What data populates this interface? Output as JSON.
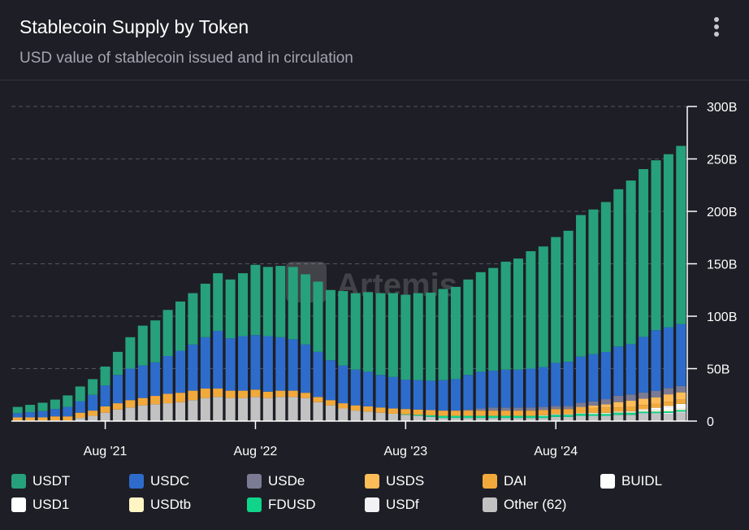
{
  "header": {
    "title": "Stablecoin Supply by Token",
    "subtitle": "USD value of stablecoin issued and in circulation",
    "menu_icon": "more-vertical-icon"
  },
  "watermark": {
    "text": "Artemis",
    "icon": "artemis-logo-icon"
  },
  "chart_data": {
    "type": "bar",
    "stacked": true,
    "title": "Stablecoin Supply by Token",
    "subtitle": "USD value of stablecoin issued and in circulation",
    "categories": [
      "Jan '21",
      "Feb '21",
      "Mar '21",
      "Apr '21",
      "May '21",
      "Jun '21",
      "Jul '21",
      "Aug '21",
      "Sep '21",
      "Oct '21",
      "Nov '21",
      "Dec '21",
      "Jan '22",
      "Feb '22",
      "Mar '22",
      "Apr '22",
      "May '22",
      "Jun '22",
      "Jul '22",
      "Aug '22",
      "Sep '22",
      "Oct '22",
      "Nov '22",
      "Dec '22",
      "Jan '23",
      "Feb '23",
      "Mar '23",
      "Apr '23",
      "May '23",
      "Jun '23",
      "Jul '23",
      "Aug '23",
      "Sep '23",
      "Oct '23",
      "Nov '23",
      "Dec '23",
      "Jan '24",
      "Feb '24",
      "Mar '24",
      "Apr '24",
      "May '24",
      "Jun '24",
      "Jul '24",
      "Aug '24",
      "Sep '24",
      "Oct '24",
      "Nov '24",
      "Dec '24",
      "Jan '25",
      "Feb '25",
      "Mar '25",
      "Apr '25",
      "May '25",
      "Jun '25"
    ],
    "x_tick_labels": [
      {
        "label": "Aug '21",
        "category": "Aug '21"
      },
      {
        "label": "Aug '22",
        "category": "Aug '22"
      },
      {
        "label": "Aug '23",
        "category": "Aug '23"
      },
      {
        "label": "Aug '24",
        "category": "Aug '24"
      }
    ],
    "y_ticks": [
      {
        "value": 0,
        "label": "0"
      },
      {
        "value": 50,
        "label": "50B"
      },
      {
        "value": 100,
        "label": "100B"
      },
      {
        "value": 150,
        "label": "150B"
      },
      {
        "value": 200,
        "label": "200B"
      },
      {
        "value": 250,
        "label": "250B"
      },
      {
        "value": 300,
        "label": "300B"
      }
    ],
    "ylim": [
      0,
      300
    ],
    "y_unit": "B",
    "y_axis_side": "right",
    "grid": true,
    "legend_position": "bottom",
    "series": [
      {
        "name": "Other (62)",
        "color": "#c2c2c2",
        "values": [
          0.5,
          0.5,
          0.5,
          0.5,
          0.5,
          3,
          5,
          8,
          11,
          13,
          15,
          16,
          17,
          18,
          20,
          22,
          23,
          22,
          22,
          23,
          22,
          23,
          23,
          22,
          18,
          15,
          12,
          10,
          9,
          8,
          7,
          6,
          5,
          4,
          3,
          3,
          3,
          3,
          3,
          3,
          3,
          3,
          3,
          4,
          4,
          5,
          5,
          5,
          6,
          6,
          7,
          7,
          7,
          8
        ]
      },
      {
        "name": "USDf",
        "color": "#f2f2f4",
        "values": [
          0,
          0,
          0,
          0,
          0,
          0,
          0,
          0,
          0,
          0,
          0,
          0,
          0,
          0,
          0,
          0,
          0,
          0,
          0,
          0,
          0,
          0,
          0,
          0,
          0,
          0,
          0,
          0,
          0,
          0,
          0,
          0,
          0,
          0,
          0,
          0,
          0,
          0,
          0,
          0,
          0,
          0,
          0,
          0,
          0,
          0,
          0,
          0,
          0,
          0,
          0.5,
          0.5,
          0.8,
          1
        ]
      },
      {
        "name": "FDUSD",
        "color": "#0fd48a",
        "values": [
          0,
          0,
          0,
          0,
          0,
          0,
          0,
          0,
          0,
          0,
          0,
          0,
          0,
          0,
          0,
          0,
          0,
          0,
          0,
          0,
          0,
          0,
          0,
          0,
          0,
          0,
          0,
          0,
          0,
          0,
          0,
          0.5,
          1,
          1.5,
          2,
          2,
          2,
          2,
          2,
          2,
          2,
          2,
          2,
          2,
          2,
          2,
          2,
          2,
          2,
          2,
          1.5,
          1.5,
          1.5,
          1.5
        ]
      },
      {
        "name": "USDtb",
        "color": "#fff5c4",
        "values": [
          0,
          0,
          0,
          0,
          0,
          0,
          0,
          0,
          0,
          0,
          0,
          0,
          0,
          0,
          0,
          0,
          0,
          0,
          0,
          0,
          0,
          0,
          0,
          0,
          0,
          0,
          0,
          0,
          0,
          0,
          0,
          0,
          0,
          0,
          0,
          0,
          0,
          0,
          0,
          0,
          0,
          0,
          0,
          0,
          0,
          0,
          0.2,
          0.3,
          0.5,
          0.8,
          1,
          1.2,
          1.2,
          1.2
        ]
      },
      {
        "name": "USD1",
        "color": "#ffffff",
        "values": [
          0,
          0,
          0,
          0,
          0,
          0,
          0,
          0,
          0,
          0,
          0,
          0,
          0,
          0,
          0,
          0,
          0,
          0,
          0,
          0,
          0,
          0,
          0,
          0,
          0,
          0,
          0,
          0,
          0,
          0,
          0,
          0,
          0,
          0,
          0,
          0,
          0,
          0,
          0,
          0,
          0,
          0,
          0,
          0,
          0,
          0,
          0,
          0,
          0,
          0,
          0.3,
          1,
          2,
          2.2
        ]
      },
      {
        "name": "BUIDL",
        "color": "#ffffff",
        "values": [
          0,
          0,
          0,
          0,
          0,
          0,
          0,
          0,
          0,
          0,
          0,
          0,
          0,
          0,
          0,
          0,
          0,
          0,
          0,
          0,
          0,
          0,
          0,
          0,
          0,
          0,
          0,
          0,
          0,
          0,
          0,
          0,
          0,
          0,
          0,
          0,
          0,
          0,
          0,
          0,
          0,
          0,
          0.5,
          0.5,
          0.5,
          0.5,
          0.6,
          0.6,
          0.6,
          0.6,
          1,
          1.5,
          2,
          2.5
        ]
      },
      {
        "name": "DAI",
        "color": "#f2a93b",
        "values": [
          3,
          3,
          3,
          4,
          4,
          5,
          5,
          6,
          6,
          7,
          7,
          8,
          9,
          9,
          9,
          9,
          8,
          7,
          7,
          7,
          6,
          6,
          6,
          5,
          5,
          5,
          5,
          5,
          5,
          5,
          5,
          5,
          5,
          5,
          5,
          5,
          5,
          5,
          5,
          5,
          5,
          5,
          5,
          5,
          5,
          5,
          5,
          5,
          4,
          4,
          4,
          4,
          4,
          4
        ]
      },
      {
        "name": "USDS",
        "color": "#ffbd59",
        "values": [
          0,
          0,
          0,
          0,
          0,
          0,
          0,
          0,
          0,
          0,
          0,
          0,
          0,
          0,
          0,
          0,
          0,
          0,
          0,
          0,
          0,
          0,
          0,
          0,
          0,
          0,
          0,
          0,
          0,
          0,
          0,
          0,
          0,
          0,
          0,
          0,
          0,
          0,
          0,
          0,
          0,
          0,
          0,
          0,
          0,
          1,
          2,
          3,
          5,
          6,
          6,
          6,
          7,
          7
        ]
      },
      {
        "name": "USDe",
        "color": "#7b7b95",
        "values": [
          0,
          0,
          0,
          0,
          0,
          0,
          0,
          0,
          0,
          0,
          0,
          0,
          0,
          0,
          0,
          0,
          0,
          0,
          0,
          0,
          0,
          0,
          0,
          0,
          0,
          0,
          0,
          0,
          0,
          0,
          0,
          0,
          0,
          0,
          0,
          0,
          1,
          2,
          3,
          3,
          3,
          3,
          3,
          3,
          3,
          4,
          4,
          5,
          6,
          6,
          6,
          6,
          6,
          6
        ]
      },
      {
        "name": "USDC",
        "color": "#2d6ccb",
        "values": [
          4,
          5,
          6,
          7,
          9,
          11,
          15,
          20,
          27,
          30,
          31,
          32,
          36,
          40,
          44,
          49,
          55,
          50,
          52,
          52,
          53,
          51,
          49,
          46,
          43,
          38,
          36,
          34,
          33,
          31,
          30,
          28,
          28,
          28,
          29,
          30,
          33,
          35,
          35,
          36,
          36,
          37,
          38,
          41,
          42,
          44,
          45,
          45,
          47,
          48,
          53,
          58,
          58,
          59
        ]
      },
      {
        "name": "USDT",
        "color": "#26a17b",
        "values": [
          6,
          7,
          8,
          9,
          11,
          14,
          15,
          18,
          22,
          30,
          38,
          40,
          44,
          47,
          49,
          51,
          55,
          56,
          60,
          67,
          66,
          68,
          69,
          67,
          67,
          67,
          71,
          73,
          76,
          78,
          80,
          81,
          83,
          84,
          87,
          88,
          91,
          95,
          98,
          103,
          106,
          112,
          115,
          120,
          125,
          135,
          138,
          143,
          150,
          156,
          160,
          162,
          165,
          170
        ]
      }
    ]
  },
  "legend": {
    "items": [
      {
        "label": "USDT",
        "color": "#26a17b"
      },
      {
        "label": "USDC",
        "color": "#2d6ccb"
      },
      {
        "label": "USDe",
        "color": "#7b7b95"
      },
      {
        "label": "USDS",
        "color": "#ffbd59"
      },
      {
        "label": "DAI",
        "color": "#f2a93b"
      },
      {
        "label": "BUIDL",
        "color": "#ffffff"
      },
      {
        "label": "USD1",
        "color": "#ffffff"
      },
      {
        "label": "USDtb",
        "color": "#fff5c4"
      },
      {
        "label": "FDUSD",
        "color": "#0fd48a"
      },
      {
        "label": "USDf",
        "color": "#f2f2f4"
      },
      {
        "label": "Other (62)",
        "color": "#c2c2c2"
      }
    ]
  },
  "colors": {
    "background": "#1e1e26",
    "grid": "#55555f",
    "axis": "#ffffff",
    "text_primary": "#ffffff",
    "text_secondary": "#a4a4ae"
  }
}
